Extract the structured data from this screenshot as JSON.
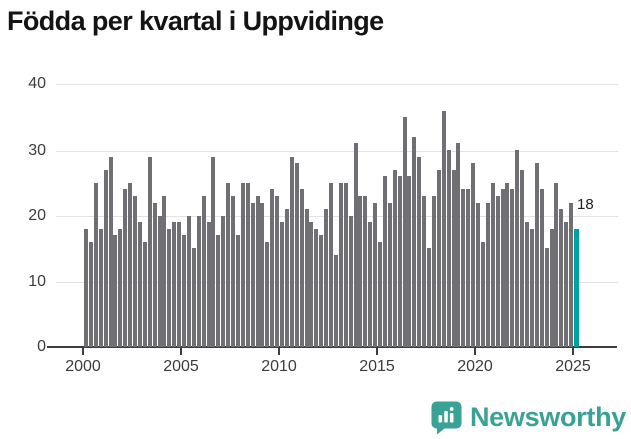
{
  "title": "Födda per kvartal i Uppvidinge",
  "annotation": {
    "last_label": "18"
  },
  "footer": {
    "brand": "Newsworthy",
    "brand_color": "#3aa294"
  },
  "colors": {
    "bar": "#6f6f74",
    "highlight": "#00a2a0",
    "gridline": "#e3e3e3",
    "axis": "#3c3c3c",
    "title_text": "#141414"
  },
  "chart_data": {
    "type": "bar",
    "title": "Födda per kvartal i Uppvidinge",
    "xlabel": "",
    "ylabel": "",
    "x_tick_labels": [
      "2000",
      "2005",
      "2010",
      "2015",
      "2020",
      "2025"
    ],
    "y_tick_labels": [
      "0",
      "10",
      "20",
      "30",
      "40"
    ],
    "ylim": [
      0,
      40
    ],
    "grid": true,
    "x_start_quarter": "2000 Q1",
    "x_end_quarter": "2025 Q1",
    "highlight_last": true,
    "last_value_label": "18",
    "series": [
      {
        "name": "Födda per kvartal",
        "values": [
          18,
          16,
          25,
          18,
          27,
          29,
          17,
          18,
          24,
          25,
          23,
          19,
          16,
          29,
          22,
          20,
          23,
          18,
          19,
          19,
          17,
          20,
          15,
          20,
          23,
          19,
          29,
          17,
          20,
          25,
          23,
          17,
          25,
          25,
          22,
          23,
          22,
          16,
          24,
          23,
          19,
          21,
          29,
          28,
          24,
          21,
          19,
          18,
          17,
          21,
          25,
          14,
          25,
          25,
          20,
          31,
          23,
          23,
          19,
          22,
          16,
          26,
          22,
          27,
          26,
          35,
          26,
          32,
          29,
          23,
          15,
          23,
          27,
          36,
          30,
          27,
          31,
          24,
          24,
          28,
          22,
          16,
          22,
          25,
          23,
          24,
          25,
          24,
          30,
          27,
          19,
          18,
          28,
          24,
          15,
          18,
          25,
          21,
          19,
          22,
          18
        ]
      }
    ]
  }
}
